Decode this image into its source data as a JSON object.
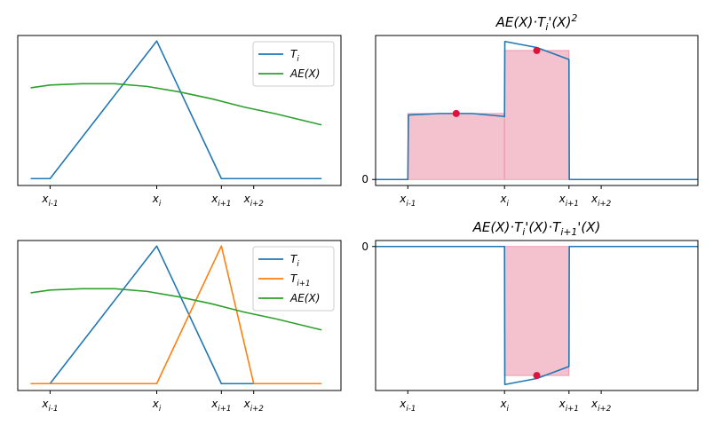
{
  "figure": {
    "background": "#ffffff"
  },
  "chart_data": [
    {
      "id": "tl",
      "type": "line",
      "title": "",
      "xlabel": "",
      "ylabel": "",
      "xlim": [
        -1,
        9
      ],
      "ylim": [
        -0.05,
        1.04
      ],
      "xticks": [
        {
          "x": 0,
          "label": "x_{i-1}"
        },
        {
          "x": 3.3,
          "label": "x_i"
        },
        {
          "x": 5.3,
          "label": "x_{i+1}"
        },
        {
          "x": 6.3,
          "label": "x_{i+2}"
        }
      ],
      "yticks": [],
      "legend": "top-right",
      "series": [
        {
          "name": "T_i",
          "color": "#1f77b4",
          "x": [
            -0.6,
            0,
            3.3,
            5.3,
            8.4
          ],
          "y": [
            0,
            0,
            1,
            0,
            0
          ]
        },
        {
          "name": "AE(X)",
          "color": "#2ca02c",
          "x": [
            -0.6,
            0,
            1,
            2,
            3,
            4,
            5,
            6,
            7,
            8.4
          ],
          "y": [
            0.66,
            0.68,
            0.69,
            0.69,
            0.67,
            0.63,
            0.58,
            0.52,
            0.47,
            0.39
          ]
        }
      ]
    },
    {
      "id": "tr",
      "type": "area",
      "title": "AE(X)·T_i'(X)^2",
      "xlabel": "",
      "ylabel": "",
      "xlim": [
        -1,
        9
      ],
      "ylim": [
        -0.04,
        0.96
      ],
      "xticks": [
        {
          "x": 0,
          "label": "x_{i-1}"
        },
        {
          "x": 3,
          "label": "x_i"
        },
        {
          "x": 5,
          "label": "x_{i+1}"
        },
        {
          "x": 6,
          "label": "x_{i+2}"
        }
      ],
      "yticks": [
        {
          "y": 0,
          "label": "0"
        }
      ],
      "series": [
        {
          "name": "",
          "color": "#1f77b4",
          "x": [
            -1,
            0,
            0.02,
            1,
            1.5,
            2,
            3,
            3.01,
            4,
            5,
            5.01,
            9
          ],
          "y": [
            0,
            0,
            0.43,
            0.44,
            0.44,
            0.44,
            0.42,
            0.92,
            0.88,
            0.8,
            0,
            0
          ]
        }
      ],
      "bars": [
        {
          "x0": 0,
          "x1": 3,
          "height": 0.44
        },
        {
          "x0": 3,
          "x1": 5,
          "height": 0.86
        }
      ],
      "points": [
        {
          "x": 1.5,
          "y": 0.44
        },
        {
          "x": 4,
          "y": 0.86
        }
      ],
      "fill_color": "#f4c2cf",
      "point_color": "#dc143c"
    },
    {
      "id": "bl",
      "type": "line",
      "title": "",
      "xlabel": "",
      "ylabel": "",
      "xlim": [
        -1,
        9
      ],
      "ylim": [
        -0.05,
        1.04
      ],
      "xticks": [
        {
          "x": 0,
          "label": "x_{i-1}"
        },
        {
          "x": 3.3,
          "label": "x_i"
        },
        {
          "x": 5.3,
          "label": "x_{i+1}"
        },
        {
          "x": 6.3,
          "label": "x_{i+2}"
        }
      ],
      "yticks": [],
      "legend": "top-right",
      "series": [
        {
          "name": "T_i",
          "color": "#1f77b4",
          "x": [
            -0.6,
            0,
            3.3,
            5.3,
            8.4
          ],
          "y": [
            0,
            0,
            1,
            0,
            0
          ]
        },
        {
          "name": "T_{i+1}",
          "color": "#ff7f0e",
          "x": [
            -0.6,
            3.3,
            5.3,
            6.3,
            8.4
          ],
          "y": [
            0,
            0,
            1,
            0,
            0
          ]
        },
        {
          "name": "AE(X)",
          "color": "#2ca02c",
          "x": [
            -0.6,
            0,
            1,
            2,
            3,
            4,
            5,
            6,
            7,
            8.4
          ],
          "y": [
            0.66,
            0.68,
            0.69,
            0.69,
            0.67,
            0.63,
            0.58,
            0.52,
            0.47,
            0.39
          ]
        }
      ]
    },
    {
      "id": "br",
      "type": "area",
      "title": "AE(X)·T_i'(X)·T_{i+1}'(X)",
      "xlabel": "",
      "ylabel": "",
      "xlim": [
        -1,
        9
      ],
      "ylim": [
        -0.96,
        0.04
      ],
      "xticks": [
        {
          "x": 0,
          "label": "x_{i-1}"
        },
        {
          "x": 3,
          "label": "x_i"
        },
        {
          "x": 5,
          "label": "x_{i+1}"
        },
        {
          "x": 6,
          "label": "x_{i+2}"
        }
      ],
      "yticks": [
        {
          "y": 0,
          "label": "0"
        }
      ],
      "series": [
        {
          "name": "",
          "color": "#1f77b4",
          "x": [
            -1,
            0,
            3,
            3.01,
            4,
            5,
            5.01,
            9
          ],
          "y": [
            0,
            0,
            0,
            -0.92,
            -0.88,
            -0.8,
            0,
            0
          ]
        }
      ],
      "bars": [
        {
          "x0": 3,
          "x1": 5,
          "height": -0.86
        }
      ],
      "points": [
        {
          "x": 4,
          "y": -0.86
        }
      ],
      "fill_color": "#f4c2cf",
      "point_color": "#dc143c"
    }
  ]
}
